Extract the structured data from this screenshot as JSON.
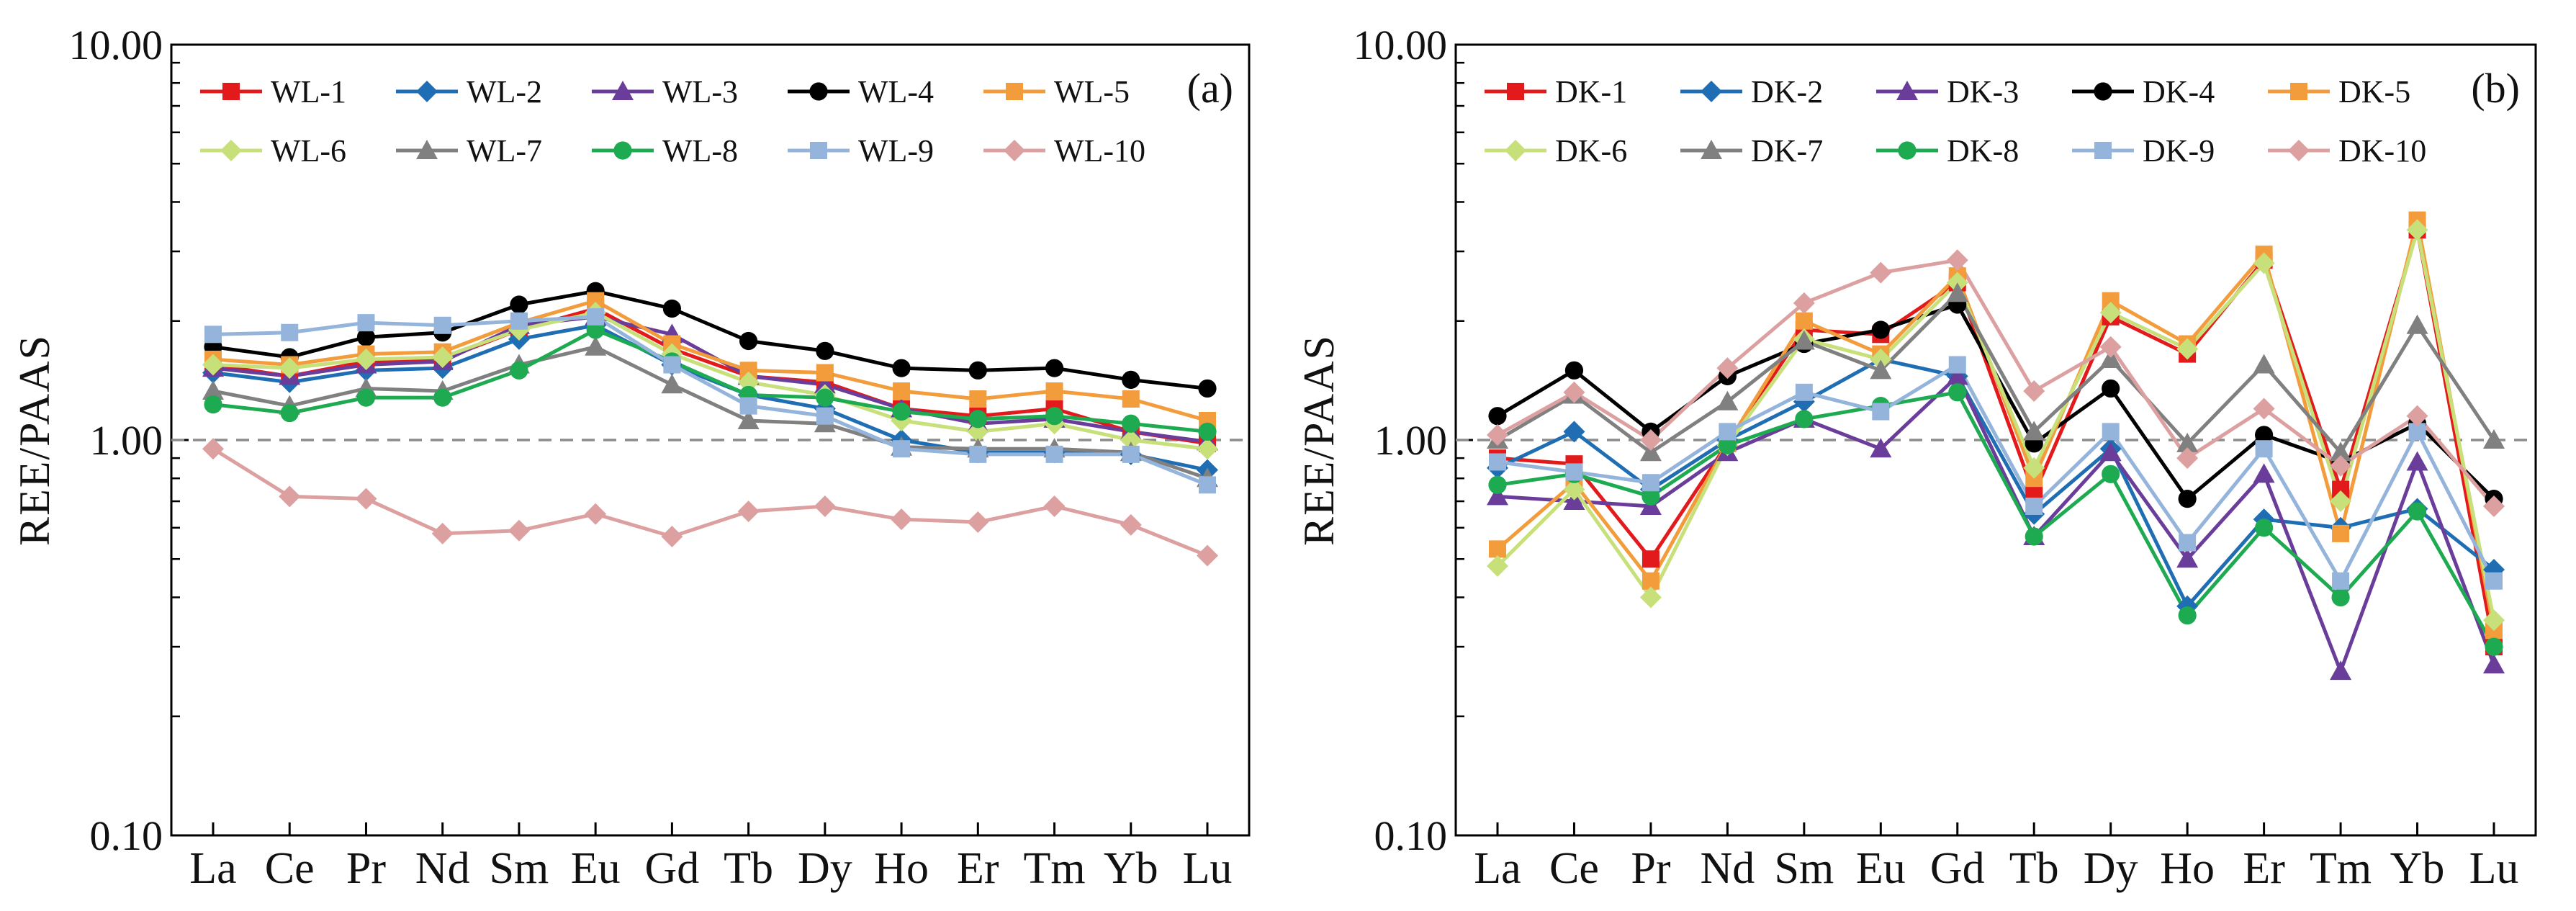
{
  "chart_data": [
    {
      "type": "line",
      "panel_label": "(a)",
      "ylabel": "REE/PAAS",
      "xlabel": "",
      "yscale": "log",
      "ylim": [
        0.1,
        10
      ],
      "yticks": [
        "0.10",
        "1.00",
        "10.00"
      ],
      "reference_line": 1.0,
      "categories": [
        "La",
        "Ce",
        "Pr",
        "Nd",
        "Sm",
        "Eu",
        "Gd",
        "Tb",
        "Dy",
        "Ho",
        "Er",
        "Tm",
        "Yb",
        "Lu"
      ],
      "legend_position": "top",
      "series": [
        {
          "name": "WL-1",
          "color": "#e31a1c",
          "marker": "square",
          "values": [
            1.55,
            1.45,
            1.58,
            1.6,
            1.9,
            2.15,
            1.7,
            1.45,
            1.4,
            1.2,
            1.15,
            1.2,
            1.05,
            0.98
          ]
        },
        {
          "name": "WL-2",
          "color": "#1f6eb4",
          "marker": "diamond",
          "values": [
            1.48,
            1.4,
            1.5,
            1.52,
            1.8,
            1.95,
            1.55,
            1.3,
            1.2,
            1.0,
            0.93,
            0.93,
            0.92,
            0.84
          ]
        },
        {
          "name": "WL-3",
          "color": "#6a3d9a",
          "marker": "triangle",
          "values": [
            1.52,
            1.45,
            1.55,
            1.58,
            1.95,
            2.05,
            1.85,
            1.45,
            1.38,
            1.2,
            1.1,
            1.13,
            1.05,
            0.99
          ]
        },
        {
          "name": "WL-4",
          "color": "#000000",
          "marker": "circle",
          "values": [
            1.72,
            1.62,
            1.82,
            1.87,
            2.2,
            2.38,
            2.15,
            1.78,
            1.68,
            1.52,
            1.5,
            1.52,
            1.42,
            1.35
          ]
        },
        {
          "name": "WL-5",
          "color": "#f39c3c",
          "marker": "square",
          "values": [
            1.6,
            1.55,
            1.65,
            1.67,
            1.98,
            2.25,
            1.75,
            1.5,
            1.48,
            1.33,
            1.27,
            1.33,
            1.27,
            1.12
          ]
        },
        {
          "name": "WL-6",
          "color": "#c7e07a",
          "marker": "diamond",
          "values": [
            1.55,
            1.52,
            1.6,
            1.62,
            1.9,
            2.1,
            1.65,
            1.4,
            1.3,
            1.12,
            1.05,
            1.1,
            1.0,
            0.95
          ]
        },
        {
          "name": "WL-7",
          "color": "#808080",
          "marker": "triangle",
          "values": [
            1.33,
            1.22,
            1.35,
            1.33,
            1.55,
            1.72,
            1.38,
            1.12,
            1.1,
            0.96,
            0.95,
            0.95,
            0.93,
            0.8
          ]
        },
        {
          "name": "WL-8",
          "color": "#1daa50",
          "marker": "circle",
          "values": [
            1.23,
            1.17,
            1.28,
            1.28,
            1.5,
            1.9,
            1.58,
            1.3,
            1.28,
            1.18,
            1.13,
            1.15,
            1.1,
            1.05
          ]
        },
        {
          "name": "WL-9",
          "color": "#94b4dc",
          "marker": "square",
          "values": [
            1.85,
            1.87,
            1.98,
            1.95,
            2.0,
            2.05,
            1.55,
            1.22,
            1.15,
            0.95,
            0.92,
            0.92,
            0.92,
            0.77
          ]
        },
        {
          "name": "WL-10",
          "color": "#dca0a0",
          "marker": "diamond",
          "values": [
            0.95,
            0.72,
            0.71,
            0.58,
            0.59,
            0.65,
            0.57,
            0.66,
            0.68,
            0.63,
            0.62,
            0.68,
            0.61,
            0.51
          ]
        }
      ]
    },
    {
      "type": "line",
      "panel_label": "(b)",
      "ylabel": "REE/PAAS",
      "xlabel": "",
      "yscale": "log",
      "ylim": [
        0.1,
        10
      ],
      "yticks": [
        "0.10",
        "1.00",
        "10.00"
      ],
      "reference_line": 1.0,
      "categories": [
        "La",
        "Ce",
        "Pr",
        "Nd",
        "Sm",
        "Eu",
        "Gd",
        "Tb",
        "Dy",
        "Ho",
        "Er",
        "Tm",
        "Yb",
        "Lu"
      ],
      "legend_position": "top",
      "series": [
        {
          "name": "DK-1",
          "color": "#e31a1c",
          "marker": "square",
          "values": [
            0.9,
            0.87,
            0.5,
            0.98,
            1.9,
            1.85,
            2.5,
            0.73,
            2.05,
            1.65,
            2.85,
            0.75,
            3.4,
            0.3
          ]
        },
        {
          "name": "DK-2",
          "color": "#1f6eb4",
          "marker": "diamond",
          "values": [
            0.85,
            1.05,
            0.75,
            1.0,
            1.25,
            1.6,
            1.45,
            0.65,
            0.95,
            0.38,
            0.63,
            0.6,
            0.67,
            0.47
          ]
        },
        {
          "name": "DK-3",
          "color": "#6a3d9a",
          "marker": "triangle",
          "values": [
            0.72,
            0.7,
            0.68,
            0.93,
            1.13,
            0.95,
            1.45,
            0.57,
            0.93,
            0.5,
            0.82,
            0.26,
            0.88,
            0.27
          ]
        },
        {
          "name": "DK-4",
          "color": "#000000",
          "marker": "circle",
          "values": [
            1.15,
            1.5,
            1.05,
            1.45,
            1.75,
            1.9,
            2.2,
            0.98,
            1.35,
            0.71,
            1.03,
            0.88,
            1.1,
            0.71
          ]
        },
        {
          "name": "DK-5",
          "color": "#f39c3c",
          "marker": "square",
          "values": [
            0.53,
            0.78,
            0.44,
            0.98,
            2.0,
            1.65,
            2.6,
            0.8,
            2.25,
            1.75,
            2.95,
            0.58,
            3.6,
            0.33
          ]
        },
        {
          "name": "DK-6",
          "color": "#c7e07a",
          "marker": "diamond",
          "values": [
            0.48,
            0.75,
            0.4,
            0.97,
            1.8,
            1.6,
            2.5,
            0.85,
            2.1,
            1.7,
            2.8,
            0.7,
            3.4,
            0.35
          ]
        },
        {
          "name": "DK-7",
          "color": "#808080",
          "marker": "triangle",
          "values": [
            1.0,
            1.3,
            0.93,
            1.25,
            1.78,
            1.5,
            2.35,
            1.05,
            1.6,
            0.98,
            1.55,
            0.93,
            1.95,
            1.0
          ]
        },
        {
          "name": "DK-8",
          "color": "#1daa50",
          "marker": "circle",
          "values": [
            0.77,
            0.82,
            0.72,
            0.97,
            1.13,
            1.22,
            1.32,
            0.57,
            0.82,
            0.36,
            0.6,
            0.4,
            0.66,
            0.3
          ]
        },
        {
          "name": "DK-9",
          "color": "#94b4dc",
          "marker": "square",
          "values": [
            0.88,
            0.83,
            0.78,
            1.05,
            1.32,
            1.18,
            1.55,
            0.68,
            1.05,
            0.55,
            0.95,
            0.44,
            1.05,
            0.44
          ]
        },
        {
          "name": "DK-10",
          "color": "#dca0a0",
          "marker": "diamond",
          "values": [
            1.03,
            1.32,
            1.0,
            1.52,
            2.22,
            2.65,
            2.85,
            1.33,
            1.72,
            0.9,
            1.2,
            0.86,
            1.15,
            0.68
          ]
        }
      ]
    }
  ]
}
